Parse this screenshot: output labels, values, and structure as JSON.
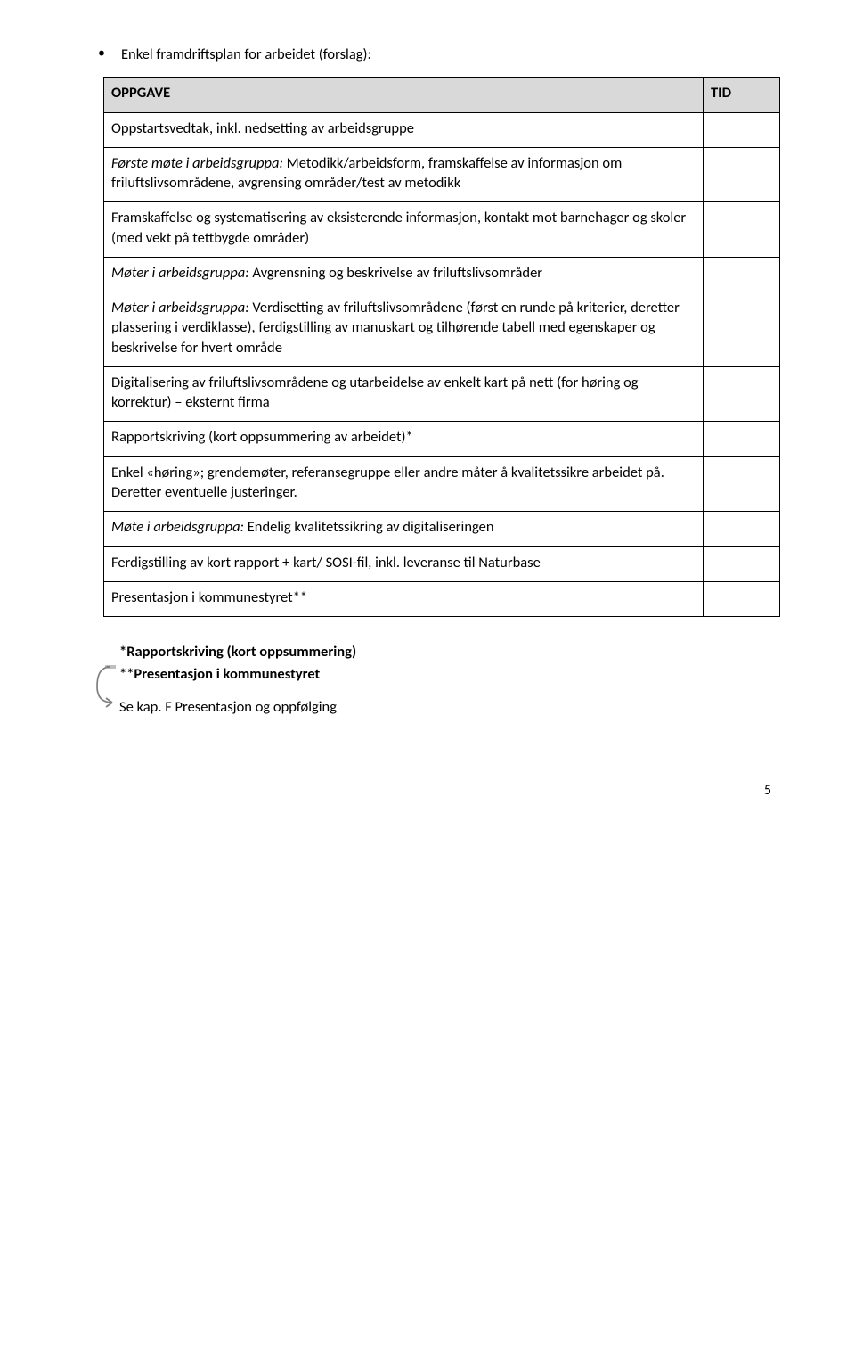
{
  "bullet": {
    "glyph": "•",
    "text": "Enkel framdriftsplan for arbeidet (forslag):"
  },
  "table": {
    "head": {
      "oppgave": "OPPGAVE",
      "tid": "TID"
    },
    "rows": [
      {
        "html": "Oppstartsvedtak, inkl. nedsetting av arbeidsgruppe"
      },
      {
        "html": "<span class=\"italic\">Første møte i arbeidsgruppa:</span> Metodikk/arbeidsform, framskaffelse av informasjon om friluftslivsområdene, avgrensing områder/test av metodikk"
      },
      {
        "html": "Framskaffelse og systematisering av eksisterende informasjon, kontakt mot barnehager og skoler (med vekt på tettbygde områder)"
      },
      {
        "html": "<span class=\"italic\">Møter i arbeidsgruppa:</span> Avgrensning og beskrivelse av friluftslivsområder"
      },
      {
        "html": "<span class=\"italic\">Møter i arbeidsgruppa:</span> Verdisetting av friluftslivsområdene (først en runde på kriterier, deretter plassering i verdiklasse), ferdigstilling av manuskart og tilhørende tabell med egenskaper og beskrivelse for hvert område"
      },
      {
        "html": "Digitalisering av friluftslivsområdene og utarbeidelse av enkelt kart på nett (for høring og korrektur) – eksternt firma"
      },
      {
        "html": "Rapportskriving (kort oppsummering av arbeidet)*"
      },
      {
        "html": "Enkel «høring»; grendemøter, referansegruppe eller andre måter å kvalitetssikre arbeidet på. Deretter eventuelle justeringer."
      },
      {
        "html": "<span class=\"italic\">Møte i arbeidsgruppa:</span> Endelig kvalitetssikring av digitaliseringen"
      },
      {
        "html": "Ferdigstilling av kort rapport + kart/ SOSI-fil, inkl. leveranse til Naturbase"
      },
      {
        "html": "Presentasjon i kommunestyret**"
      }
    ]
  },
  "footer": {
    "line1": "*Rapportskriving (kort oppsummering)",
    "line2": "**Presentasjon i kommunestyret",
    "line3": "Se kap. F Presentasjon og oppfølging"
  },
  "arrow": {
    "stroke": "#7f7f7f"
  },
  "pagenum": "5",
  "colors": {
    "header_bg": "#d9d9d9",
    "border": "#000000",
    "text": "#000000",
    "bg": "#ffffff"
  }
}
